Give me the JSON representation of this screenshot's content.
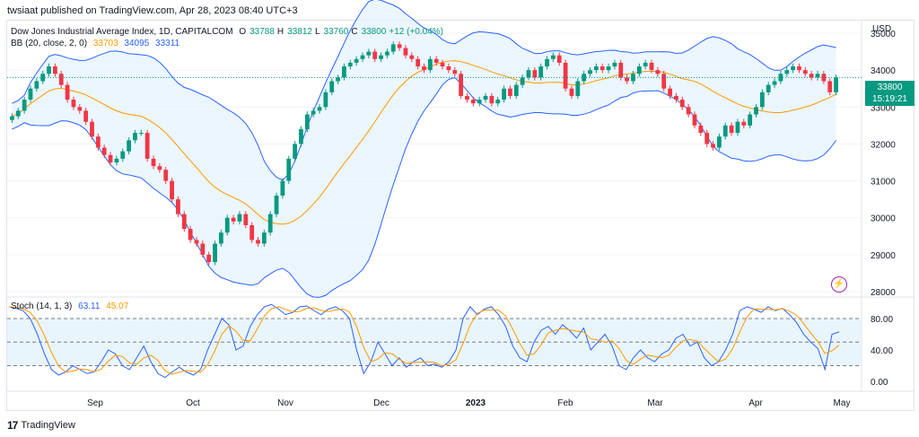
{
  "header": {
    "publisher_line": "twsiaat published on TradingView.com, Apr 28, 2023 08:40 UTC+3"
  },
  "symbol_legend": {
    "name": "Dow Jones Industrial Average Index, 1D, CAPITALCOM",
    "o_label": "O",
    "o_value": "33788",
    "h_label": "H",
    "h_value": "33812",
    "l_label": "L",
    "l_value": "33760",
    "c_label": "C",
    "c_value": "33800",
    "change": "+12 (+0.04%)"
  },
  "bb_legend": {
    "label": "BB (20, close, 2, 0)",
    "basis": "33703",
    "upper": "34095",
    "lower": "33311"
  },
  "stoch_legend": {
    "label": "Stoch (14, 1, 3)",
    "k": "63.11",
    "d": "45.07"
  },
  "price_axis": {
    "currency": "USD",
    "ticks": [
      "35000",
      "34000",
      "33000",
      "32000",
      "31000",
      "30000",
      "29000",
      "28000"
    ],
    "last_price": "33800",
    "countdown": "15:19:21"
  },
  "stoch_axis": {
    "ticks": [
      "80.00",
      "40.00",
      "0.00"
    ]
  },
  "time_axis": {
    "labels": [
      "Sep",
      "Oct",
      "Nov",
      "Dec",
      "2023",
      "Feb",
      "Mar",
      "Apr",
      "May"
    ]
  },
  "footer": {
    "brand": "TradingView"
  },
  "colors": {
    "up": "#089981",
    "down": "#f23645",
    "basis": "#ff9800",
    "bands": "#2962ff",
    "band_fill": "#e3f2fd",
    "stoch_k": "#2962ff",
    "stoch_d": "#ff9800"
  },
  "chart_data": {
    "type": "candlestick",
    "ylim": [
      28000,
      35000
    ],
    "close": [
      32750,
      32900,
      33200,
      33500,
      33700,
      33900,
      34100,
      33900,
      33600,
      33200,
      33000,
      32900,
      32600,
      32200,
      31900,
      31700,
      31500,
      31600,
      31800,
      32100,
      32300,
      32300,
      31600,
      31400,
      31300,
      31000,
      30500,
      30100,
      29700,
      29400,
      29300,
      29000,
      28800,
      29300,
      29600,
      30000,
      29900,
      30100,
      29800,
      29400,
      29300,
      29600,
      30100,
      30600,
      31000,
      31600,
      32000,
      32400,
      32800,
      32900,
      33000,
      33400,
      33700,
      33800,
      34100,
      34200,
      34300,
      34400,
      34500,
      34300,
      34400,
      34500,
      34700,
      34600,
      34400,
      34300,
      34100,
      34000,
      34300,
      34200,
      34100,
      34000,
      33900,
      33300,
      33200,
      33100,
      33200,
      33300,
      33100,
      33200,
      33500,
      33300,
      33600,
      33800,
      34000,
      33800,
      34100,
      34300,
      34400,
      34200,
      33500,
      33300,
      33700,
      33900,
      34000,
      34100,
      34000,
      34100,
      34200,
      33800,
      33700,
      33900,
      34100,
      34200,
      34000,
      33900,
      33500,
      33300,
      33200,
      33000,
      32800,
      32500,
      32300,
      32000,
      31900,
      32200,
      32500,
      32300,
      32600,
      32500,
      32800,
      33000,
      33400,
      33600,
      33700,
      33900,
      34000,
      34100,
      34000,
      33900,
      33800,
      33900,
      33700,
      33400,
      33800
    ],
    "stoch_k": [
      95,
      93,
      90,
      80,
      60,
      35,
      15,
      8,
      12,
      20,
      15,
      10,
      12,
      25,
      40,
      35,
      20,
      15,
      30,
      45,
      25,
      10,
      5,
      12,
      18,
      12,
      8,
      15,
      40,
      60,
      80,
      72,
      40,
      45,
      70,
      85,
      95,
      98,
      92,
      85,
      88,
      95,
      96,
      90,
      85,
      92,
      95,
      90,
      80,
      40,
      10,
      25,
      50,
      35,
      20,
      30,
      18,
      25,
      30,
      20,
      22,
      18,
      25,
      40,
      80,
      95,
      85,
      92,
      95,
      85,
      70,
      45,
      30,
      25,
      50,
      65,
      70,
      60,
      72,
      65,
      55,
      68,
      40,
      50,
      60,
      45,
      20,
      15,
      30,
      40,
      30,
      25,
      35,
      40,
      55,
      60,
      45,
      50,
      30,
      20,
      25,
      40,
      60,
      90,
      95,
      92,
      88,
      95,
      90,
      93,
      85,
      75,
      60,
      50,
      42,
      15,
      60,
      63
    ]
  }
}
